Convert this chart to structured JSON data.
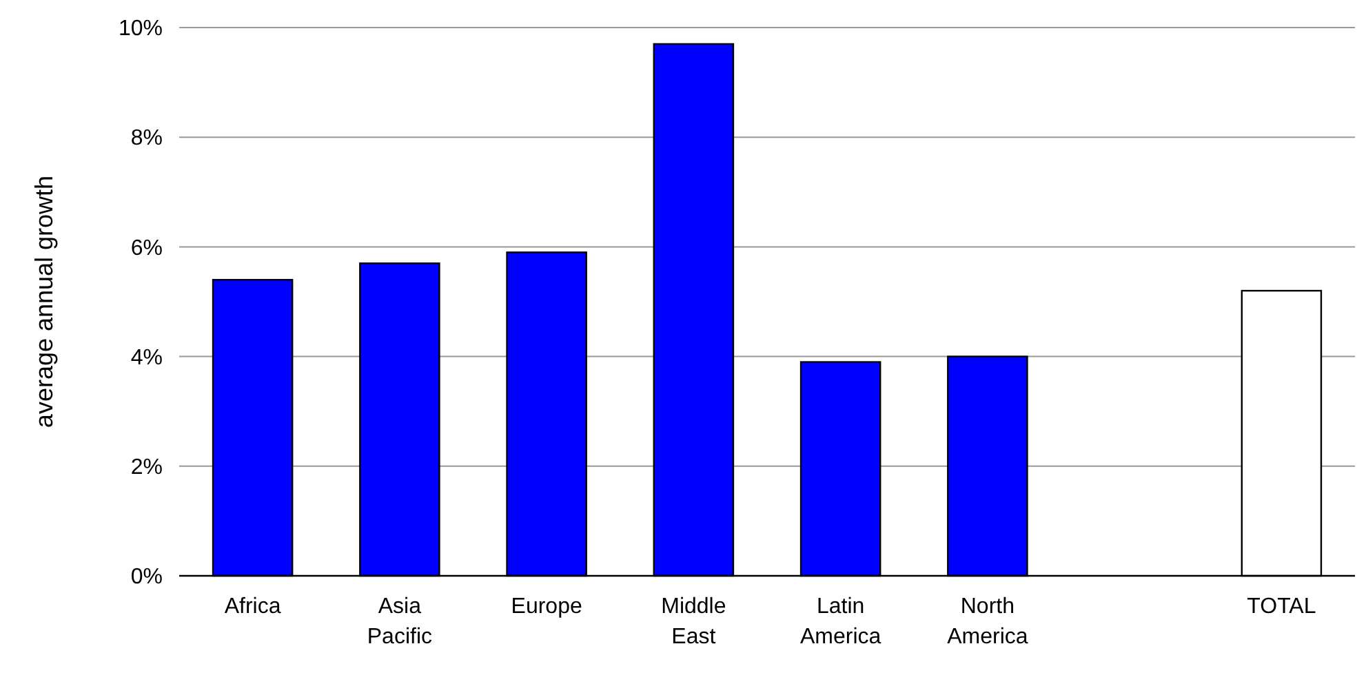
{
  "chart_data": {
    "type": "bar",
    "ylabel": "average annual growth",
    "categories": [
      "Africa",
      "Asia Pacific",
      "Europe",
      "Middle East",
      "Latin America",
      "North America",
      null,
      "TOTAL"
    ],
    "values": [
      5.4,
      5.7,
      5.9,
      9.7,
      3.9,
      4.0,
      null,
      5.2
    ],
    "colors": [
      "#0000ff",
      "#0000ff",
      "#0000ff",
      "#0000ff",
      "#0000ff",
      "#0000ff",
      null,
      "#ffffff"
    ],
    "ylim": [
      0,
      10
    ],
    "yticks": [
      {
        "value": 0,
        "label": "0%"
      },
      {
        "value": 2,
        "label": "2%"
      },
      {
        "value": 4,
        "label": "4%"
      },
      {
        "value": 6,
        "label": "6%"
      },
      {
        "value": 8,
        "label": "8%"
      },
      {
        "value": 10,
        "label": "10%"
      }
    ],
    "grid": "y"
  }
}
